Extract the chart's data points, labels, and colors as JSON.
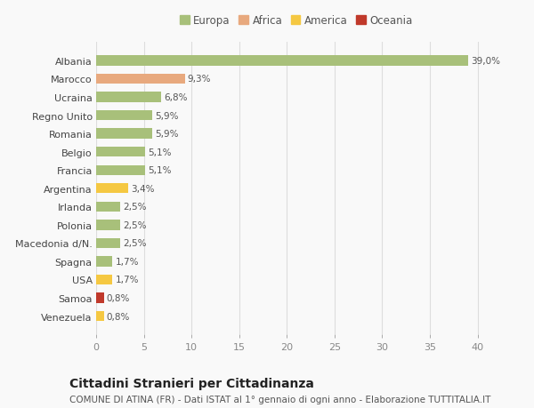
{
  "categories": [
    "Venezuela",
    "Samoa",
    "USA",
    "Spagna",
    "Macedonia d/N.",
    "Polonia",
    "Irlanda",
    "Argentina",
    "Francia",
    "Belgio",
    "Romania",
    "Regno Unito",
    "Ucraina",
    "Marocco",
    "Albania"
  ],
  "values": [
    0.8,
    0.8,
    1.7,
    1.7,
    2.5,
    2.5,
    2.5,
    3.4,
    5.1,
    5.1,
    5.9,
    5.9,
    6.8,
    9.3,
    39.0
  ],
  "labels": [
    "0,8%",
    "0,8%",
    "1,7%",
    "1,7%",
    "2,5%",
    "2,5%",
    "2,5%",
    "3,4%",
    "5,1%",
    "5,1%",
    "5,9%",
    "5,9%",
    "6,8%",
    "9,3%",
    "39,0%"
  ],
  "colors": [
    "#f5c842",
    "#c0392b",
    "#f5c842",
    "#a8c07a",
    "#a8c07a",
    "#a8c07a",
    "#a8c07a",
    "#f5c842",
    "#a8c07a",
    "#a8c07a",
    "#a8c07a",
    "#a8c07a",
    "#a8c07a",
    "#e8a97e",
    "#a8c07a"
  ],
  "legend_labels": [
    "Europa",
    "Africa",
    "America",
    "Oceania"
  ],
  "legend_colors": [
    "#a8c07a",
    "#e8a97e",
    "#f5c842",
    "#c0392b"
  ],
  "title": "Cittadini Stranieri per Cittadinanza",
  "subtitle": "COMUNE DI ATINA (FR) - Dati ISTAT al 1° gennaio di ogni anno - Elaborazione TUTTITALIA.IT",
  "xlim": [
    0,
    42
  ],
  "xticks": [
    0,
    5,
    10,
    15,
    20,
    25,
    30,
    35,
    40
  ],
  "background_color": "#f9f9f9",
  "grid_color": "#dddddd",
  "bar_height": 0.55,
  "title_fontsize": 10,
  "subtitle_fontsize": 7.5,
  "label_fontsize": 7.5,
  "tick_fontsize": 8,
  "legend_fontsize": 8.5
}
